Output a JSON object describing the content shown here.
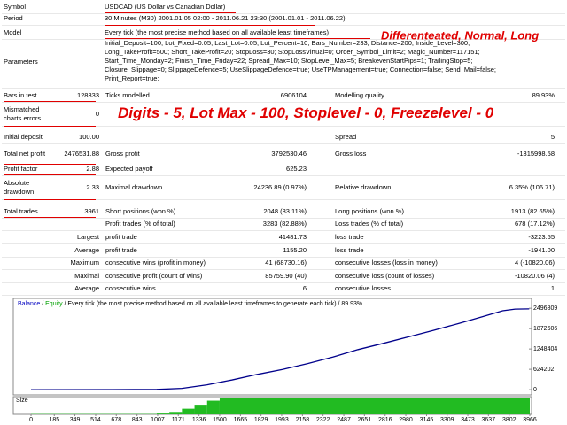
{
  "report": {
    "header": [
      {
        "label": "Symbol",
        "value": "USDCAD (US Dollar vs Canadian Dollar)"
      },
      {
        "label": "Period",
        "value": "30 Minutes (M30) 2001.01.05 02:00 - 2011.06.21 23:30 (2001.01.01 - 2011.06.22)"
      },
      {
        "label": "Model",
        "value": "Every tick (the most precise method based on all available least timeframes)"
      }
    ],
    "parameters": {
      "label": "Parameters",
      "lines": [
        "Initial_Deposit=100; Lot_Fixed=0.05; Last_Lot=0.05; Lot_Percent=10; Bars_Number=233; Distance=200; Inside_Level=300;",
        "Long_TakeProfit=500; Short_TakeProfit=20; StopLoss=30; StopLossVirtual=0; Order_Symbol_Limit=2; Magic_Number=117151;",
        "Start_Time_Monday=2; Finish_Time_Friday=22; Spread_Max=10; StopLevel_Max=5; BreakevenStartPips=1; TrailingStop=5;",
        "Closure_Slippage=0; SlippageDefence=5; UseSlippageDefence=true; UseTPManagement=true; Connection=false; Send_Mail=false;",
        "Print_Report=true;"
      ]
    },
    "rows": [
      {
        "label": "Bars in test",
        "value": "128333",
        "label2": "Ticks modelled",
        "value2": "6906104",
        "label3": "Modelling quality",
        "value3": "89.93%"
      },
      {
        "label": "Mismatched charts errors",
        "value": "0"
      },
      {
        "label": "Initial deposit",
        "value": "100.00",
        "label3": "Spread",
        "value3": "5"
      },
      {
        "label": "Total net profit",
        "value": "2476531.88",
        "label2": "Gross profit",
        "value2": "3792530.46",
        "label3": "Gross loss",
        "value3": "-1315998.58"
      },
      {
        "label": "Profit factor",
        "value": "2.88",
        "label2": "Expected payoff",
        "value2": "625.23"
      },
      {
        "label": "Absolute drawdown",
        "value": "2.33",
        "label2": "Maximal drawdown",
        "value2": "24236.89 (0.97%)",
        "label3": "Relative drawdown",
        "value3": "6.35% (106.71)"
      },
      {
        "label": "Total trades",
        "value": "3961",
        "label2": "Short positions (won %)",
        "value2": "2048 (83.11%)",
        "label3": "Long positions (won %)",
        "value3": "1913 (82.65%)"
      },
      {
        "label2": "Profit trades (% of total)",
        "value2": "3283 (82.88%)",
        "label3": "Loss trades (% of total)",
        "value3": "678 (17.12%)"
      },
      {
        "label": "Largest",
        "label2": "profit trade",
        "value2": "41481.73",
        "label3": "loss trade",
        "value3": "-3223.55"
      },
      {
        "label": "Average",
        "label2": "profit trade",
        "value2": "1155.20",
        "label3": "loss trade",
        "value3": "-1941.00"
      },
      {
        "label": "Maximum",
        "label2": "consecutive wins (profit in money)",
        "value2": "41 (68730.16)",
        "label3": "consecutive losses (loss in money)",
        "value3": "4 (-10820.06)"
      },
      {
        "label": "Maximal",
        "label2": "consecutive profit (count of wins)",
        "value2": "85759.90 (40)",
        "label3": "consecutive loss (count of losses)",
        "value3": "-10820.06 (4)"
      },
      {
        "label": "Average",
        "label2": "consecutive wins",
        "value2": "6",
        "label3": "consecutive losses",
        "value3": "1"
      }
    ]
  },
  "annotations": [
    "Differenteated, Normal, Long",
    "Digits - 5, Lot Max - 100, Stoplevel - 0, Freezelevel - 0"
  ],
  "chart_data": {
    "type": "line",
    "legend": [
      "Balance",
      "/",
      "Equity",
      "/ Every tick (the most precise method based on all available least timeframes to generate each tick) / 89.93%"
    ],
    "legend_colors": [
      "#0000c0",
      "#000000",
      "#00a000",
      "#000000"
    ],
    "x": [
      0,
      600,
      1000,
      1200,
      1400,
      1600,
      1800,
      2000,
      2200,
      2400,
      2600,
      2800,
      3000,
      3200,
      3400,
      3600,
      3750,
      3850,
      3961
    ],
    "series": [
      {
        "name": "Balance",
        "color": "#00008b",
        "values": [
          100,
          2000,
          8000,
          40000,
          150000,
          300000,
          470000,
          620000,
          800000,
          1000000,
          1230000,
          1420000,
          1620000,
          1820000,
          2030000,
          2250000,
          2420000,
          2470000,
          2476531.88
        ]
      }
    ],
    "xlim": [
      -141,
      3980
    ],
    "ylim": [
      -160000,
      2800000
    ],
    "yticks": [
      2496809,
      1872606,
      1248404,
      624202,
      0
    ],
    "xticks": [
      0,
      185,
      349,
      514,
      678,
      843,
      1007,
      1171,
      1336,
      1500,
      1665,
      1829,
      1993,
      2158,
      2322,
      2487,
      2651,
      2816,
      2980,
      3145,
      3309,
      3473,
      3637,
      3802,
      3966
    ],
    "size": {
      "label": "Size",
      "color": "#22bb22",
      "x": [
        0,
        1000,
        1100,
        1200,
        1300,
        1400,
        1500,
        3966
      ],
      "values": [
        0.02,
        0.05,
        0.15,
        0.35,
        0.6,
        0.85,
        1,
        1
      ],
      "ylim": [
        0,
        1.1
      ]
    }
  }
}
